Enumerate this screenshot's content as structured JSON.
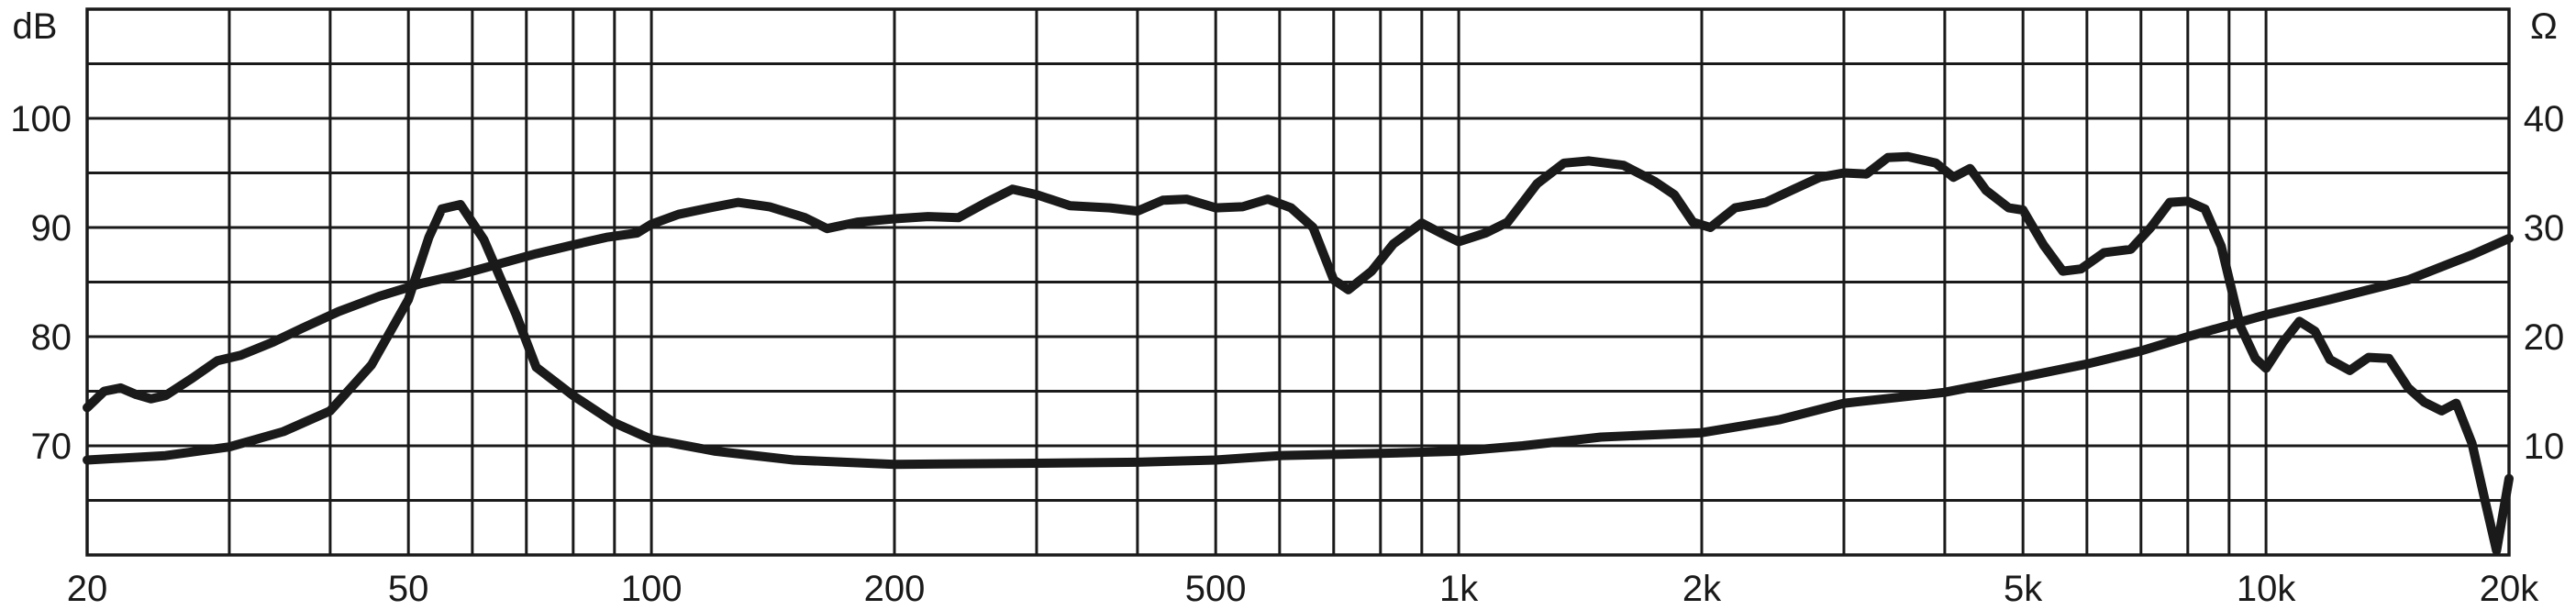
{
  "chart_data": {
    "type": "line",
    "x_scale": "log",
    "x_range_hz": [
      20,
      20000
    ],
    "x_ticks": [
      {
        "label": "20",
        "value": 20
      },
      {
        "label": "50",
        "value": 50
      },
      {
        "label": "100",
        "value": 100
      },
      {
        "label": "200",
        "value": 200
      },
      {
        "label": "500",
        "value": 500
      },
      {
        "label": "1k",
        "value": 1000
      },
      {
        "label": "2k",
        "value": 2000
      },
      {
        "label": "5k",
        "value": 5000
      },
      {
        "label": "10k",
        "value": 10000
      },
      {
        "label": "20k",
        "value": 20000
      }
    ],
    "y_left": {
      "unit_label": "dB",
      "range": [
        60,
        110
      ],
      "ticks": [
        {
          "label": "70",
          "value": 70
        },
        {
          "label": "80",
          "value": 80
        },
        {
          "label": "90",
          "value": 90
        },
        {
          "label": "100",
          "value": 100
        }
      ]
    },
    "y_right": {
      "unit_label": "Ω",
      "range": [
        0,
        50
      ],
      "ticks": [
        {
          "label": "10",
          "value": 10
        },
        {
          "label": "20",
          "value": 20
        },
        {
          "label": "30",
          "value": 30
        },
        {
          "label": "40",
          "value": 40
        }
      ]
    },
    "grid": true,
    "line_color": "#1a1a1a",
    "series": [
      {
        "axis": "left",
        "points": [
          [
            20,
            73.5
          ],
          [
            21,
            75.0
          ],
          [
            22,
            75.3
          ],
          [
            23,
            74.7
          ],
          [
            24,
            74.3
          ],
          [
            25,
            74.6
          ],
          [
            27,
            76.2
          ],
          [
            29,
            77.8
          ],
          [
            31,
            78.3
          ],
          [
            34,
            79.5
          ],
          [
            37,
            80.8
          ],
          [
            41,
            82.3
          ],
          [
            46,
            83.7
          ],
          [
            52,
            84.9
          ],
          [
            58,
            85.7
          ],
          [
            65,
            86.7
          ],
          [
            72,
            87.6
          ],
          [
            80,
            88.4
          ],
          [
            88,
            89.1
          ],
          [
            96,
            89.5
          ],
          [
            100,
            90.3
          ],
          [
            108,
            91.2
          ],
          [
            118,
            91.8
          ],
          [
            128,
            92.3
          ],
          [
            140,
            91.9
          ],
          [
            155,
            90.9
          ],
          [
            165,
            89.9
          ],
          [
            180,
            90.5
          ],
          [
            200,
            90.8
          ],
          [
            220,
            91.0
          ],
          [
            240,
            90.9
          ],
          [
            260,
            92.3
          ],
          [
            280,
            93.5
          ],
          [
            300,
            93.0
          ],
          [
            330,
            92.0
          ],
          [
            370,
            91.8
          ],
          [
            400,
            91.5
          ],
          [
            430,
            92.5
          ],
          [
            460,
            92.6
          ],
          [
            500,
            91.8
          ],
          [
            540,
            91.9
          ],
          [
            580,
            92.6
          ],
          [
            620,
            91.8
          ],
          [
            660,
            90.0
          ],
          [
            700,
            85.2
          ],
          [
            730,
            84.3
          ],
          [
            780,
            86.0
          ],
          [
            830,
            88.5
          ],
          [
            900,
            90.4
          ],
          [
            950,
            89.5
          ],
          [
            1000,
            88.7
          ],
          [
            1080,
            89.5
          ],
          [
            1150,
            90.5
          ],
          [
            1250,
            94.0
          ],
          [
            1350,
            95.9
          ],
          [
            1450,
            96.1
          ],
          [
            1600,
            95.7
          ],
          [
            1750,
            94.2
          ],
          [
            1850,
            93.0
          ],
          [
            1950,
            90.5
          ],
          [
            2050,
            90.0
          ],
          [
            2200,
            91.8
          ],
          [
            2400,
            92.3
          ],
          [
            2600,
            93.5
          ],
          [
            2800,
            94.6
          ],
          [
            3000,
            95.0
          ],
          [
            3200,
            94.9
          ],
          [
            3400,
            96.4
          ],
          [
            3600,
            96.5
          ],
          [
            3900,
            95.9
          ],
          [
            4100,
            94.6
          ],
          [
            4300,
            95.4
          ],
          [
            4500,
            93.4
          ],
          [
            4800,
            91.8
          ],
          [
            5000,
            91.6
          ],
          [
            5300,
            88.4
          ],
          [
            5600,
            86.0
          ],
          [
            5900,
            86.2
          ],
          [
            6300,
            87.7
          ],
          [
            6800,
            88.0
          ],
          [
            7200,
            90.0
          ],
          [
            7600,
            92.3
          ],
          [
            8000,
            92.4
          ],
          [
            8400,
            91.7
          ],
          [
            8800,
            88.3
          ],
          [
            9300,
            80.9
          ],
          [
            9700,
            78.0
          ],
          [
            10000,
            77.1
          ],
          [
            10500,
            79.5
          ],
          [
            11000,
            81.4
          ],
          [
            11500,
            80.5
          ],
          [
            12000,
            77.9
          ],
          [
            12700,
            76.9
          ],
          [
            13400,
            78.1
          ],
          [
            14200,
            78.0
          ],
          [
            15000,
            75.3
          ],
          [
            15700,
            74.0
          ],
          [
            16500,
            73.2
          ],
          [
            17200,
            73.9
          ],
          [
            18000,
            70.2
          ],
          [
            18700,
            64.8
          ],
          [
            19300,
            60.4
          ],
          [
            20000,
            67.0
          ]
        ]
      },
      {
        "axis": "right",
        "points": [
          [
            20,
            8.7
          ],
          [
            25,
            9.1
          ],
          [
            30,
            9.9
          ],
          [
            35,
            11.3
          ],
          [
            40,
            13.2
          ],
          [
            45,
            17.4
          ],
          [
            50,
            23.4
          ],
          [
            53,
            29.1
          ],
          [
            55,
            31.7
          ],
          [
            58,
            32.1
          ],
          [
            62,
            28.9
          ],
          [
            68,
            22.0
          ],
          [
            72,
            17.2
          ],
          [
            80,
            14.6
          ],
          [
            90,
            12.1
          ],
          [
            100,
            10.6
          ],
          [
            120,
            9.5
          ],
          [
            150,
            8.7
          ],
          [
            200,
            8.3
          ],
          [
            300,
            8.4
          ],
          [
            400,
            8.5
          ],
          [
            500,
            8.7
          ],
          [
            600,
            9.1
          ],
          [
            800,
            9.3
          ],
          [
            1000,
            9.5
          ],
          [
            1200,
            10.0
          ],
          [
            1500,
            10.8
          ],
          [
            2000,
            11.2
          ],
          [
            2500,
            12.4
          ],
          [
            3000,
            13.9
          ],
          [
            4000,
            14.9
          ],
          [
            5000,
            16.3
          ],
          [
            6000,
            17.5
          ],
          [
            7000,
            18.7
          ],
          [
            8000,
            20.0
          ],
          [
            10000,
            22.0
          ],
          [
            12000,
            23.4
          ],
          [
            15000,
            25.2
          ],
          [
            18000,
            27.5
          ],
          [
            20000,
            29.0
          ]
        ]
      }
    ]
  }
}
